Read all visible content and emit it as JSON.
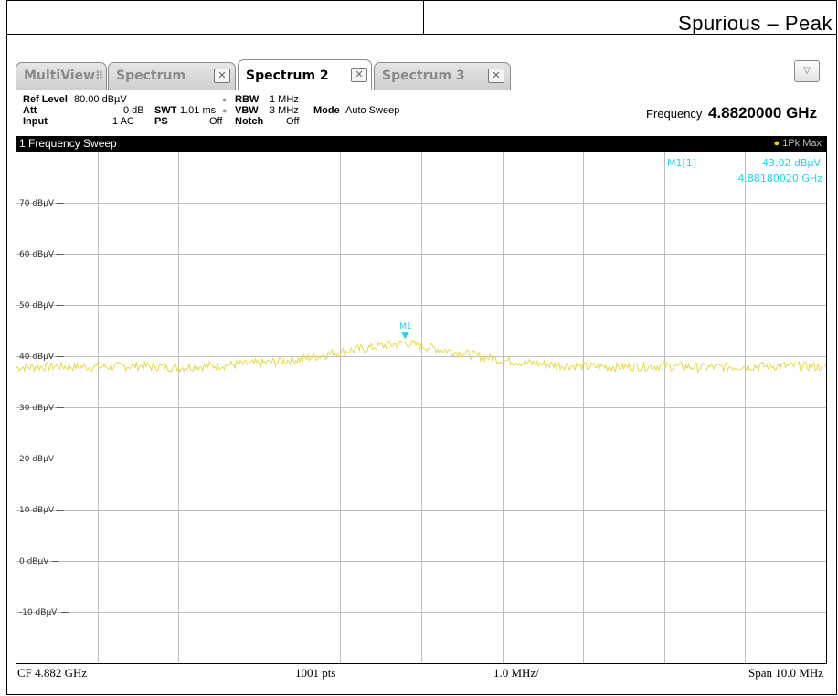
{
  "document": {
    "heading": "Spurious – Peak"
  },
  "tabs": [
    {
      "label": "MultiView",
      "active": false
    },
    {
      "label": "Spectrum",
      "active": false
    },
    {
      "label": "Spectrum 2",
      "active": true
    },
    {
      "label": "Spectrum 3",
      "active": false
    }
  ],
  "settings": {
    "ref_level_label": "Ref Level",
    "ref_level_value": "80.00 dBµV",
    "att_label": "Att",
    "att_value": "0 dB",
    "swt_label": "SWT",
    "swt_value": "1.01 ms",
    "input_label": "Input",
    "input_value": "1 AC",
    "ps_label": "PS",
    "ps_value": "Off",
    "rbw_label": "RBW",
    "rbw_value": "1 MHz",
    "vbw_label": "VBW",
    "vbw_value": "3 MHz",
    "notch_label": "Notch",
    "notch_value": "Off",
    "mode_label": "Mode",
    "mode_value": "Auto Sweep",
    "frequency_label": "Frequency",
    "frequency_value": "4.8820000 GHz"
  },
  "window": {
    "title": "1 Frequency Sweep",
    "trace_label": "1Pk Max"
  },
  "marker": {
    "name": "M1[1]",
    "label": "M1",
    "level": "43.02 dBµV",
    "frequency": "4.88180020 GHz",
    "x_mhz": 4881.8,
    "y_dbuv": 43.02
  },
  "footer": {
    "cf": "CF 4.882 GHz",
    "points": "1001 pts",
    "div": "1.0 MHz/",
    "span": "Span 10.0 MHz"
  },
  "colors": {
    "trace": "#e8d84a",
    "marker": "#19d7f0",
    "grid": "#bdbdbd"
  },
  "chart_data": {
    "type": "line",
    "xlim": [
      4877.0,
      4887.0
    ],
    "ylim": [
      -20,
      80
    ],
    "y_ticks": [
      {
        "value": 70,
        "label": "70 dBµV"
      },
      {
        "value": 60,
        "label": "60 dBµV"
      },
      {
        "value": 50,
        "label": "50 dBµV"
      },
      {
        "value": 40,
        "label": "40 dBµV"
      },
      {
        "value": 30,
        "label": "30 dBµV"
      },
      {
        "value": 20,
        "label": "20 dBµV"
      },
      {
        "value": 10,
        "label": "10 dBµV"
      },
      {
        "value": 0,
        "label": "0 dBµV"
      },
      {
        "value": -10,
        "label": "-10 dBµV"
      }
    ],
    "x_divisions": 10,
    "grid": true,
    "series": [
      {
        "x": [
          4877.0,
          4877.5,
          4878.0,
          4878.5,
          4879.0,
          4879.5,
          4880.0,
          4880.5,
          4881.0,
          4881.5,
          4881.8,
          4882.0,
          4882.5,
          4883.0,
          4883.5,
          4884.0,
          4884.5,
          4885.0,
          4885.5,
          4886.0,
          4886.5,
          4887.0
        ],
        "y": [
          37.8,
          38.0,
          37.9,
          38.1,
          37.8,
          38.2,
          38.6,
          39.4,
          40.8,
          42.0,
          42.6,
          42.0,
          40.6,
          39.2,
          38.4,
          38.0,
          37.9,
          38.1,
          37.8,
          38.0,
          38.1,
          37.9
        ]
      }
    ]
  }
}
